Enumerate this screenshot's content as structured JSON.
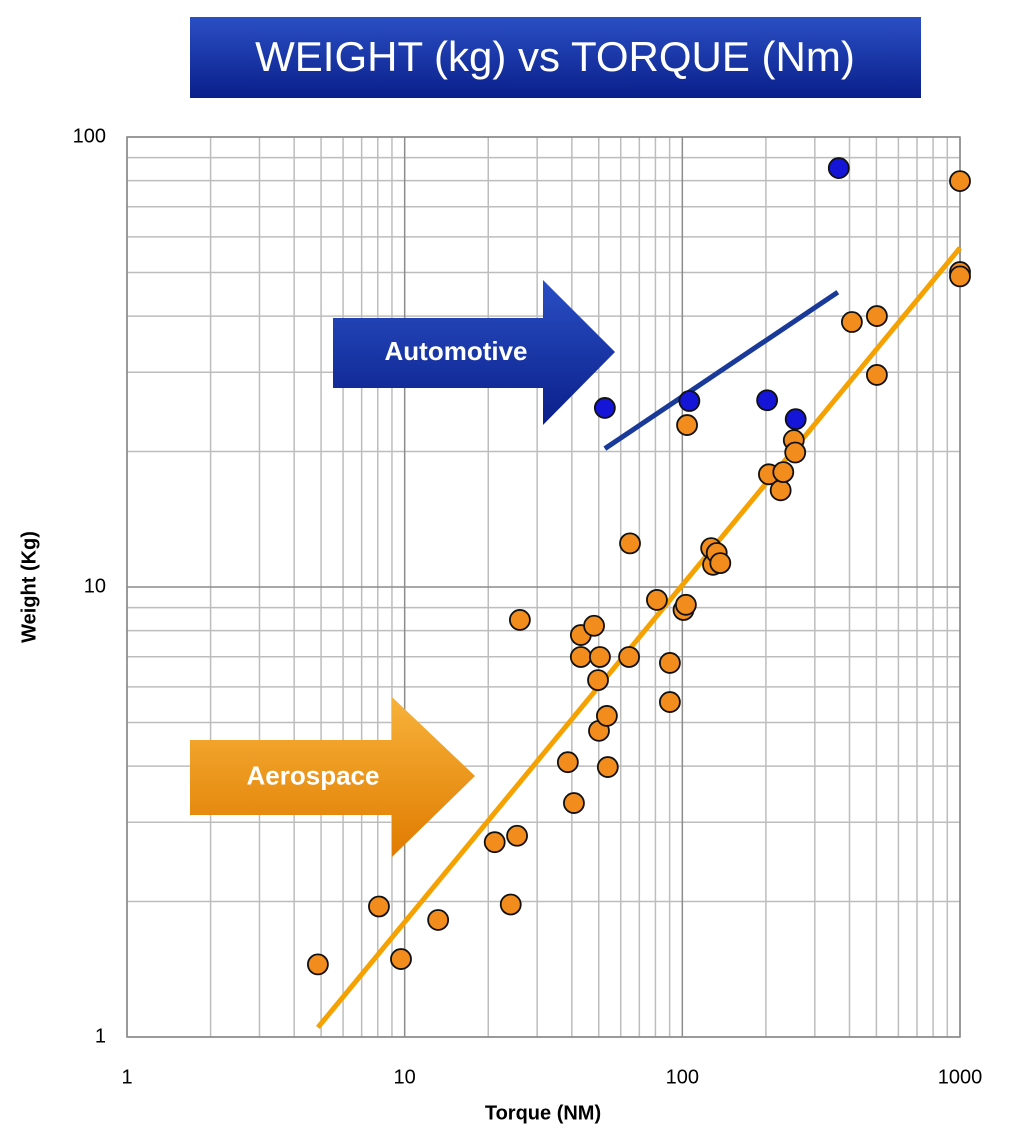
{
  "chart_data": {
    "type": "scatter",
    "title": "WEIGHT (kg) vs TORQUE (Nm)",
    "x_label": "Torque (NM)",
    "y_label": "Weight (Kg)",
    "xscale": "log",
    "yscale": "log",
    "xlim": [
      1,
      1000
    ],
    "ylim": [
      1,
      100
    ],
    "xticks": [
      1,
      10,
      100,
      1000
    ],
    "yticks": [
      1,
      10,
      100
    ],
    "minor_xticks": [
      2,
      3,
      4,
      5,
      6,
      7,
      8,
      9,
      20,
      30,
      40,
      50,
      60,
      70,
      80,
      90,
      200,
      300,
      400,
      500,
      600,
      700,
      800,
      900
    ],
    "minor_yticks": [
      2,
      3,
      4,
      5,
      6,
      7,
      8,
      9,
      20,
      30,
      40,
      50,
      60,
      70,
      80,
      90
    ],
    "grid": true,
    "series": [
      {
        "name": "Aerospace",
        "color": "#f28c1c",
        "x": [
          4.87,
          8.08,
          9.7,
          13.2,
          21.1,
          25.4,
          24.1,
          26,
          38.7,
          40.7,
          43.1,
          43.1,
          48.1,
          50.5,
          49.7,
          50.1,
          53.5,
          53.9,
          64.8,
          64.3,
          81,
          90.2,
          90.2,
          101,
          103,
          104,
          127,
          129,
          133,
          137,
          205,
          226,
          231,
          252,
          255,
          408,
          502,
          502,
          1000,
          1000,
          1000
        ],
        "values": [
          1.45,
          1.95,
          1.49,
          1.82,
          2.71,
          2.8,
          1.97,
          8.45,
          4.08,
          3.31,
          7.82,
          6.99,
          8.2,
          6.99,
          6.21,
          4.79,
          5.17,
          3.98,
          12.5,
          6.99,
          9.36,
          6.78,
          5.55,
          8.89,
          9.13,
          22.9,
          12.2,
          11.2,
          11.9,
          11.3,
          17.8,
          16.4,
          18,
          21.2,
          19.9,
          38.8,
          40,
          29.6,
          79.8,
          50.1,
          49
        ]
      },
      {
        "name": "Automotive",
        "color": "#1515d8",
        "x": [
          52.6,
          106,
          202,
          256,
          366
        ],
        "values": [
          25,
          25.9,
          26,
          23.6,
          85.3
        ]
      }
    ],
    "trendlines": [
      {
        "color": "#f5a200",
        "x": [
          4.87,
          1000
        ],
        "values": [
          1.05,
          56.7
        ]
      },
      {
        "color": "#1a3a9a",
        "x": [
          52.6,
          363
        ],
        "values": [
          20.3,
          45.2
        ]
      }
    ]
  }
}
